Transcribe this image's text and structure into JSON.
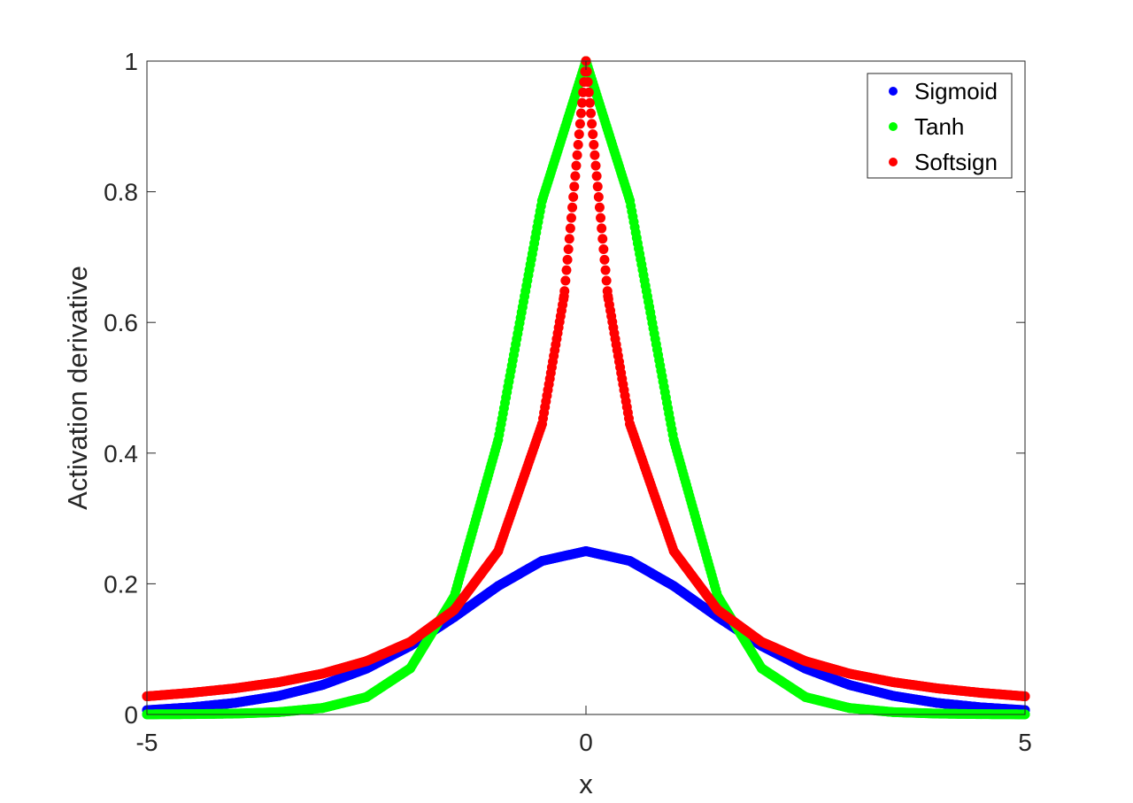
{
  "chart_data": {
    "type": "scatter",
    "title": "",
    "xlabel": "x",
    "ylabel": "Activation derivative",
    "xlim": [
      -5,
      5
    ],
    "ylim": [
      0,
      1
    ],
    "x_ticks": [
      -5,
      0,
      5
    ],
    "x_tick_labels": [
      "-5",
      "0",
      "5"
    ],
    "y_ticks": [
      0,
      0.2,
      0.4,
      0.6,
      0.8,
      1
    ],
    "y_tick_labels": [
      "0",
      "0.2",
      "0.4",
      "0.6",
      "0.8",
      "1"
    ],
    "grid": false,
    "legend_position": "top-right",
    "series": [
      {
        "name": "Sigmoid",
        "color": "#0000ff",
        "x": [
          -5,
          -4.5,
          -4,
          -3.5,
          -3,
          -2.5,
          -2,
          -1.5,
          -1,
          -0.5,
          0,
          0.5,
          1,
          1.5,
          2,
          2.5,
          3,
          3.5,
          4,
          4.5,
          5
        ],
        "y": [
          0.0066,
          0.0109,
          0.0177,
          0.0285,
          0.0452,
          0.0701,
          0.105,
          0.1491,
          0.1966,
          0.235,
          0.25,
          0.235,
          0.1966,
          0.1491,
          0.105,
          0.0701,
          0.0452,
          0.0285,
          0.0177,
          0.0109,
          0.0066
        ]
      },
      {
        "name": "Tanh",
        "color": "#00ff00",
        "x": [
          -5,
          -4.5,
          -4,
          -3.5,
          -3,
          -2.5,
          -2,
          -1.5,
          -1,
          -0.5,
          0,
          0.5,
          1,
          1.5,
          2,
          2.5,
          3,
          3.5,
          4,
          4.5,
          5
        ],
        "y": [
          0.0002,
          0.0005,
          0.0013,
          0.0036,
          0.0099,
          0.0266,
          0.0707,
          0.1807,
          0.42,
          0.7864,
          1,
          0.7864,
          0.42,
          0.1807,
          0.0707,
          0.0266,
          0.0099,
          0.0036,
          0.0013,
          0.0005,
          0.0002
        ]
      },
      {
        "name": "Softsign",
        "color": "#ff0000",
        "x": [
          -5,
          -4.5,
          -4,
          -3.5,
          -3,
          -2.5,
          -2,
          -1.5,
          -1,
          -0.5,
          -0.25,
          0,
          0.25,
          0.5,
          1,
          1.5,
          2,
          2.5,
          3,
          3.5,
          4,
          4.5,
          5
        ],
        "y": [
          0.0278,
          0.0331,
          0.04,
          0.0494,
          0.0625,
          0.0816,
          0.1111,
          0.16,
          0.25,
          0.4444,
          0.64,
          1,
          0.64,
          0.4444,
          0.25,
          0.16,
          0.1111,
          0.0816,
          0.0625,
          0.0494,
          0.04,
          0.0331,
          0.0278
        ]
      }
    ]
  }
}
